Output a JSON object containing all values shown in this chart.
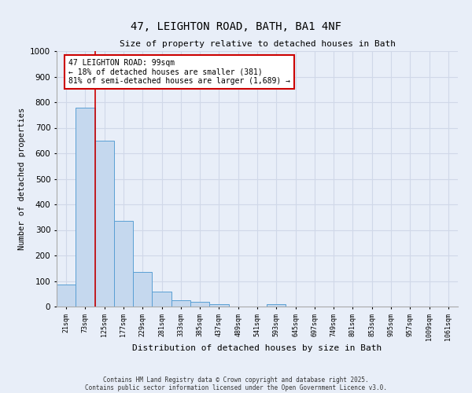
{
  "title_line1": "47, LEIGHTON ROAD, BATH, BA1 4NF",
  "title_line2": "Size of property relative to detached houses in Bath",
  "xlabel": "Distribution of detached houses by size in Bath",
  "ylabel": "Number of detached properties",
  "bin_labels": [
    "21sqm",
    "73sqm",
    "125sqm",
    "177sqm",
    "229sqm",
    "281sqm",
    "333sqm",
    "385sqm",
    "437sqm",
    "489sqm",
    "541sqm",
    "593sqm",
    "645sqm",
    "697sqm",
    "749sqm",
    "801sqm",
    "853sqm",
    "905sqm",
    "957sqm",
    "1009sqm",
    "1061sqm"
  ],
  "bar_values": [
    85,
    780,
    650,
    335,
    135,
    60,
    25,
    18,
    10,
    0,
    0,
    10,
    0,
    0,
    0,
    0,
    0,
    0,
    0,
    0,
    0
  ],
  "bar_color": "#c5d8ee",
  "bar_edgecolor": "#5a9fd4",
  "property_line_color": "#cc0000",
  "annotation_text": "47 LEIGHTON ROAD: 99sqm\n← 18% of detached houses are smaller (381)\n81% of semi-detached houses are larger (1,689) →",
  "annotation_box_edgecolor": "#cc0000",
  "annotation_box_facecolor": "#ffffff",
  "ylim": [
    0,
    1000
  ],
  "yticks": [
    0,
    100,
    200,
    300,
    400,
    500,
    600,
    700,
    800,
    900,
    1000
  ],
  "background_color": "#e8eef8",
  "grid_color": "#d0d8e8",
  "footer_line1": "Contains HM Land Registry data © Crown copyright and database right 2025.",
  "footer_line2": "Contains public sector information licensed under the Open Government Licence v3.0."
}
